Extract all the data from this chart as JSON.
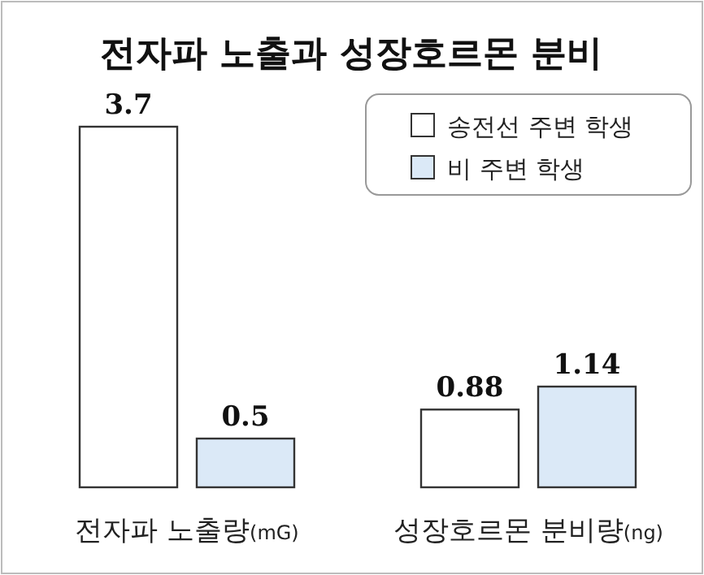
{
  "chart_data": [
    {
      "type": "bar",
      "title": "전자파 노출과 성장호르몬 분비",
      "categories": [
        "전자파 노출량(mG)"
      ],
      "data_labels": true,
      "series": [
        {
          "color": "#ffffff",
          "values": [
            3.7
          ]
        },
        {
          "color": "#dbe9f7",
          "values": [
            0.5
          ]
        }
      ]
    },
    {
      "type": "bar",
      "categories": [
        "성장호르몬 분비량(ng)"
      ],
      "data_labels": true,
      "legend": "top",
      "series": [
        {
          "name": "송전선 주변 학생",
          "color": "#ffffff",
          "values": [
            0.88
          ]
        },
        {
          "name": "비 주변 학생",
          "color": "#dbe9f7",
          "values": [
            1.14
          ]
        }
      ]
    }
  ]
}
